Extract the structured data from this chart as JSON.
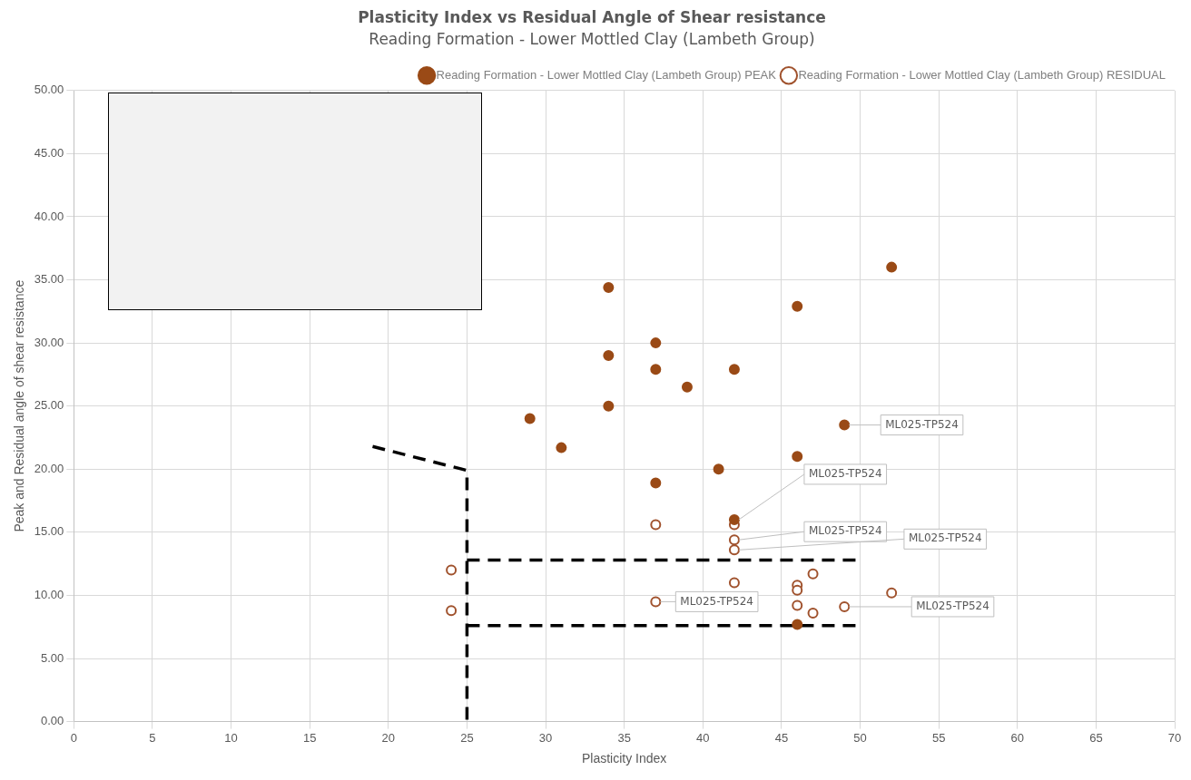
{
  "chart_data": {
    "type": "scatter",
    "title": "Plasticity Index vs Residual Angle of Shear resistance",
    "subtitle": "Reading Formation - Lower Mottled Clay (Lambeth Group)",
    "xlabel": "Plasticity Index",
    "ylabel": "Peak and Residual angle of shear resistance",
    "series": [
      {
        "name": "Reading Formation - Lower Mottled Clay (Lambeth Group) PEAK",
        "color": "#9a4a16",
        "marker": "circle",
        "x": [
          52,
          34,
          46,
          37,
          34,
          37,
          42,
          39,
          34,
          29,
          49,
          31,
          46,
          41,
          37,
          42,
          46
        ],
        "values": [
          36.0,
          34.4,
          32.9,
          30.0,
          29.0,
          27.9,
          27.9,
          26.5,
          25.0,
          24.0,
          23.5,
          21.7,
          21.0,
          20.0,
          18.9,
          16.0,
          7.7
        ]
      },
      {
        "name": "Reading Formation - Lower Mottled Clay (Lambeth Group) RESIDUAL",
        "color": "#a0522d",
        "marker": "circle-open",
        "x": [
          37,
          42,
          42,
          42,
          24,
          42,
          47,
          46,
          46,
          52,
          37,
          46,
          49,
          24,
          47
        ],
        "values": [
          15.6,
          15.6,
          14.4,
          13.6,
          12.0,
          11.0,
          11.7,
          10.8,
          10.4,
          10.2,
          9.5,
          9.2,
          9.1,
          8.8,
          8.6
        ]
      },
      {
        "type": "line",
        "color": "#000000",
        "line_style": "dashed",
        "marker": "none",
        "x": [
          19,
          25,
          25
        ],
        "values": [
          21.8,
          19.9,
          0
        ]
      },
      {
        "type": "line",
        "color": "#000000",
        "line_style": "dashed",
        "marker": "none",
        "x": [
          25,
          50
        ],
        "values": [
          12.8,
          12.8
        ]
      },
      {
        "type": "line",
        "color": "#000000",
        "line_style": "dashed",
        "marker": "none",
        "x": [
          25,
          50
        ],
        "values": [
          7.6,
          7.6
        ]
      }
    ],
    "annotations": [
      {
        "text": "ML025-TP524",
        "x": 49,
        "y": 23.5
      },
      {
        "text": "ML025-TP524",
        "x": 42,
        "y": 16.0
      },
      {
        "text": "ML025-TP524",
        "x": 42,
        "y": 14.4
      },
      {
        "text": "ML025-TP524",
        "x": 42,
        "y": 13.6
      },
      {
        "text": "ML025-TP524",
        "x": 37,
        "y": 9.5
      },
      {
        "text": "ML025-TP524",
        "x": 49,
        "y": 9.1
      }
    ],
    "xlim": [
      0,
      70
    ],
    "xticks": [
      0,
      5,
      10,
      15,
      20,
      25,
      30,
      35,
      40,
      45,
      50,
      55,
      60,
      65,
      70
    ],
    "ylim": [
      0,
      50
    ],
    "yticks": [
      {
        "value": 0,
        "label": "0.00"
      },
      {
        "value": 5,
        "label": "5.00"
      },
      {
        "value": 10,
        "label": "10.00"
      },
      {
        "value": 15,
        "label": "15.00"
      },
      {
        "value": 20,
        "label": "20.00"
      },
      {
        "value": 25,
        "label": "25.00"
      },
      {
        "value": 30,
        "label": "30.00"
      },
      {
        "value": 35,
        "label": "35.00"
      },
      {
        "value": 40,
        "label": "40.00"
      },
      {
        "value": 45,
        "label": "45.00"
      },
      {
        "value": 50,
        "label": "50.00"
      }
    ],
    "grid": true,
    "legend": "top right"
  }
}
